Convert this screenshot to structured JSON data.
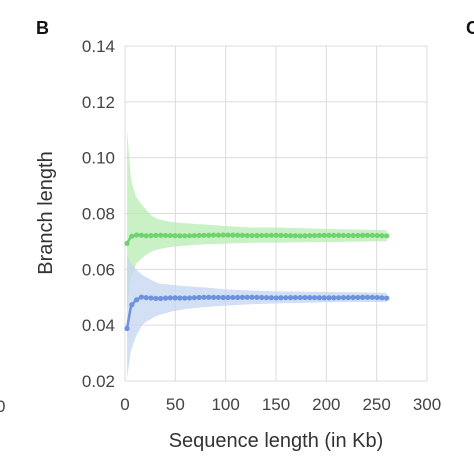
{
  "panel_label": "B",
  "edge_left_label": "0",
  "edge_right_label": "C",
  "chart_data": {
    "type": "line",
    "xlabel": "Sequence length (in Kb)",
    "ylabel": "Branch length",
    "xlim": [
      0,
      300
    ],
    "ylim": [
      0.02,
      0.14
    ],
    "x_ticks": [
      0,
      50,
      100,
      150,
      200,
      250,
      300
    ],
    "y_ticks": [
      0.02,
      0.04,
      0.06,
      0.08,
      0.1,
      0.12,
      0.14
    ],
    "x_tick_labels": [
      "0",
      "50",
      "100",
      "150",
      "200",
      "250",
      "300"
    ],
    "y_tick_labels": [
      "0.02",
      "0.04",
      "0.06",
      "0.08",
      "0.10",
      "0.12",
      "0.14"
    ],
    "grid": true,
    "series": [
      {
        "color": "#6fd36f",
        "band_color": "#b8ecb3",
        "x": [
          2,
          6,
          11,
          17,
          22,
          27,
          33,
          45,
          60,
          80,
          100,
          125,
          150,
          175,
          200,
          225,
          245,
          260
        ],
        "y": [
          0.0693,
          0.0718,
          0.0723,
          0.0722,
          0.072,
          0.0721,
          0.0722,
          0.0721,
          0.072,
          0.0722,
          0.0723,
          0.0721,
          0.0722,
          0.072,
          0.0722,
          0.0721,
          0.0722,
          0.072
        ],
        "lower": [
          0.045,
          0.057,
          0.062,
          0.064,
          0.0655,
          0.0665,
          0.0672,
          0.068,
          0.0685,
          0.069,
          0.0692,
          0.0695,
          0.0695,
          0.0697,
          0.0698,
          0.0699,
          0.07,
          0.07
        ],
        "upper": [
          0.11,
          0.092,
          0.086,
          0.083,
          0.081,
          0.079,
          0.078,
          0.077,
          0.0765,
          0.076,
          0.0755,
          0.075,
          0.075,
          0.0747,
          0.0745,
          0.0743,
          0.0742,
          0.074
        ]
      },
      {
        "color": "#6c93dc",
        "band_color": "#c4d4f2",
        "x": [
          2,
          6,
          11,
          17,
          22,
          27,
          33,
          45,
          60,
          80,
          100,
          125,
          150,
          175,
          200,
          225,
          245,
          260
        ],
        "y": [
          0.0388,
          0.047,
          0.049,
          0.0502,
          0.0498,
          0.0497,
          0.0495,
          0.0498,
          0.0497,
          0.05,
          0.0499,
          0.05,
          0.0498,
          0.0499,
          0.0498,
          0.0499,
          0.05,
          0.0497
        ],
        "lower": [
          0.021,
          0.031,
          0.036,
          0.04,
          0.0415,
          0.0425,
          0.0435,
          0.0448,
          0.0458,
          0.0465,
          0.047,
          0.0475,
          0.0478,
          0.048,
          0.0482,
          0.0483,
          0.0483,
          0.0483
        ],
        "upper": [
          0.065,
          0.062,
          0.06,
          0.058,
          0.057,
          0.056,
          0.055,
          0.0545,
          0.054,
          0.0535,
          0.0528,
          0.0524,
          0.0521,
          0.052,
          0.0519,
          0.0518,
          0.0517,
          0.0516
        ]
      }
    ]
  }
}
